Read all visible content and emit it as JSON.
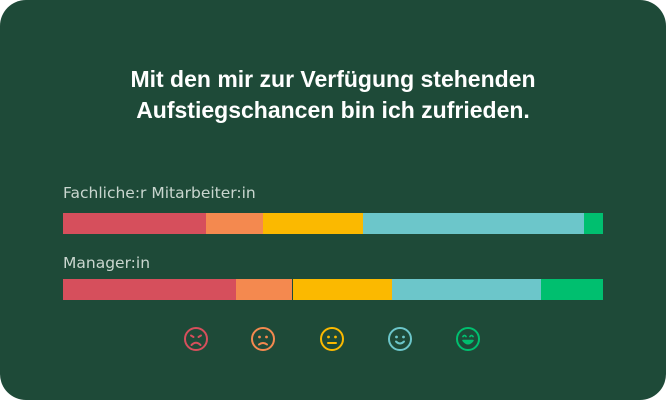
{
  "title_lines": [
    "Mit den mir zur Verfügung stehenden",
    "Aufstiegschancen bin ich zufrieden."
  ],
  "colors": {
    "background": "#1e4a38",
    "very_dissatisfied": "#d64f5c",
    "dissatisfied": "#f4894f",
    "neutral": "#fbb900",
    "satisfied": "#6cc6ca",
    "very_satisfied": "#00bf6f"
  },
  "faces": [
    {
      "icon": "very-dissatisfied-face-icon",
      "color": "#d64f5c"
    },
    {
      "icon": "dissatisfied-face-icon",
      "color": "#f4894f"
    },
    {
      "icon": "neutral-face-icon",
      "color": "#fbb900"
    },
    {
      "icon": "satisfied-face-icon",
      "color": "#6cc6ca"
    },
    {
      "icon": "very-satisfied-face-icon",
      "color": "#00bf6f"
    }
  ],
  "chart_data": {
    "type": "bar",
    "orientation": "horizontal",
    "stacked": true,
    "title": "Mit den mir zur Verfügung stehenden Aufstiegschancen bin ich zufrieden.",
    "categories": [
      "Fachliche:r Mitarbeiter:in",
      "Manager:in"
    ],
    "xlim": [
      0,
      100
    ],
    "grid": false,
    "legend": "bottom (emoji faces)",
    "series": [
      {
        "color": "#d64f5c",
        "values": [
          26.5,
          32
        ]
      },
      {
        "color": "#f4894f",
        "values": [
          10.5,
          10.5
        ]
      },
      {
        "color": "#fbb900",
        "values": [
          18.5,
          18.5
        ]
      },
      {
        "color": "#6cc6ca",
        "values": [
          41,
          27.5
        ]
      },
      {
        "color": "#00bf6f",
        "values": [
          3.5,
          11.5
        ]
      }
    ]
  }
}
